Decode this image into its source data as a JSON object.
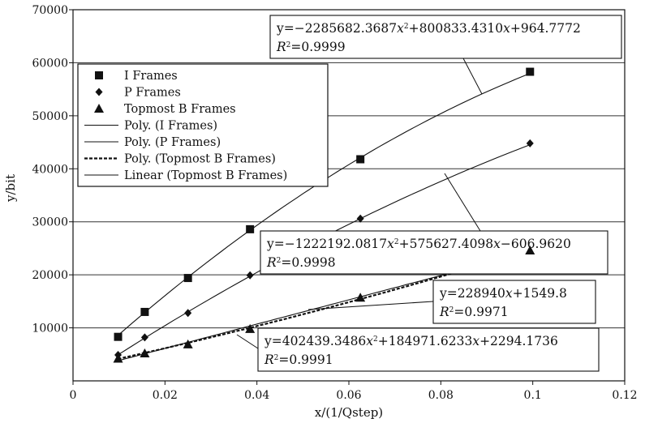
{
  "chart_data": {
    "type": "scatter",
    "xlabel": "x/(1/Qstep)",
    "ylabel": "y/bit",
    "xlim": [
      0,
      0.12
    ],
    "ylim": [
      0,
      70000
    ],
    "xticks": [
      0,
      0.02,
      0.04,
      0.06,
      0.08,
      0.1,
      0.12
    ],
    "xtick_labels": [
      "0",
      "0.02",
      "0.04",
      "0.06",
      "0.08",
      "0.1",
      "0.12"
    ],
    "yticks": [
      10000,
      20000,
      30000,
      40000,
      50000,
      60000,
      70000
    ],
    "ytick_labels": [
      "10000",
      "20000",
      "30000",
      "40000",
      "50000",
      "60000",
      "70000"
    ],
    "grid": "horizontal",
    "legend_position": "top-left",
    "series": [
      {
        "name": "I Frames",
        "marker": "square",
        "x": [
          0.0098,
          0.0156,
          0.025,
          0.0385,
          0.0625,
          0.0994
        ],
        "y": [
          8300,
          13000,
          19400,
          28600,
          41800,
          58300
        ]
      },
      {
        "name": "P Frames",
        "marker": "diamond",
        "x": [
          0.0098,
          0.0156,
          0.025,
          0.0385,
          0.0625,
          0.0994
        ],
        "y": [
          4900,
          8200,
          12800,
          19900,
          30600,
          44800
        ]
      },
      {
        "name": "Topmost B Frames",
        "marker": "triangle",
        "x": [
          0.0098,
          0.0156,
          0.025,
          0.0385,
          0.0625,
          0.0994
        ],
        "y": [
          4200,
          5200,
          6900,
          9800,
          15700,
          24600
        ]
      }
    ],
    "fits": [
      {
        "name": "Poly. (I Frames)",
        "kind": "poly2",
        "style": "solid",
        "coef": [
          -2285682.3687,
          800833.431,
          964.7772
        ],
        "equation": {
          "prefix": "y=−2285682.3687",
          "var1": "x",
          "exp": "2",
          "rest": "+800833.4310",
          "var2": "x",
          "tail": "+964.7772"
        },
        "r2_value": "=0.9999",
        "range": [
          0.0098,
          0.0994
        ]
      },
      {
        "name": "Poly. (P Frames)",
        "kind": "poly2",
        "style": "solid",
        "coef": [
          -1222192.0817,
          575627.4098,
          -606.962
        ],
        "equation": {
          "prefix": "y=−1222192.0817",
          "var1": "x",
          "exp": "2",
          "rest": "+575627.4098",
          "var2": "x",
          "tail": "−606.9620"
        },
        "r2_value": "=0.9998",
        "range": [
          0.0098,
          0.0994
        ]
      },
      {
        "name": "Poly. (Topmost B Frames)",
        "kind": "poly2",
        "style": "dashed",
        "coef": [
          402439.3486,
          184971.6233,
          2294.1736
        ],
        "equation": {
          "prefix": "y=402439.3486",
          "var1": "x",
          "exp": "2",
          "rest": "+184971.6233",
          "var2": "x",
          "tail": "+2294.1736"
        },
        "r2_value": "=0.9991",
        "range": [
          0.0098,
          0.0994
        ]
      },
      {
        "name": "Linear (Topmost B Frames)",
        "kind": "linear",
        "style": "solid",
        "coef": [
          228940,
          1549.8
        ],
        "equation": {
          "prefix": "y=228940",
          "var1": "x",
          "exp": "",
          "rest": "+1549.8",
          "var2": "",
          "tail": ""
        },
        "r2_value": "=0.9971",
        "range": [
          0.0098,
          0.0994
        ]
      }
    ],
    "legend": [
      {
        "label": "I Frames",
        "symbol": "square"
      },
      {
        "label": "P Frames",
        "symbol": "diamond"
      },
      {
        "label": "Topmost B Frames",
        "symbol": "triangle"
      },
      {
        "label": "Poly. (I Frames)",
        "symbol": "line"
      },
      {
        "label": "Poly. (P Frames)",
        "symbol": "line"
      },
      {
        "label": "Poly. (Topmost B Frames)",
        "symbol": "dashed"
      },
      {
        "label": "Linear (Topmost B Frames)",
        "symbol": "line"
      }
    ],
    "r2_symbol": "R",
    "r2_exp": "2",
    "colors": {
      "ink": "#111111",
      "grid": "#333333",
      "background": "#ffffff"
    }
  }
}
